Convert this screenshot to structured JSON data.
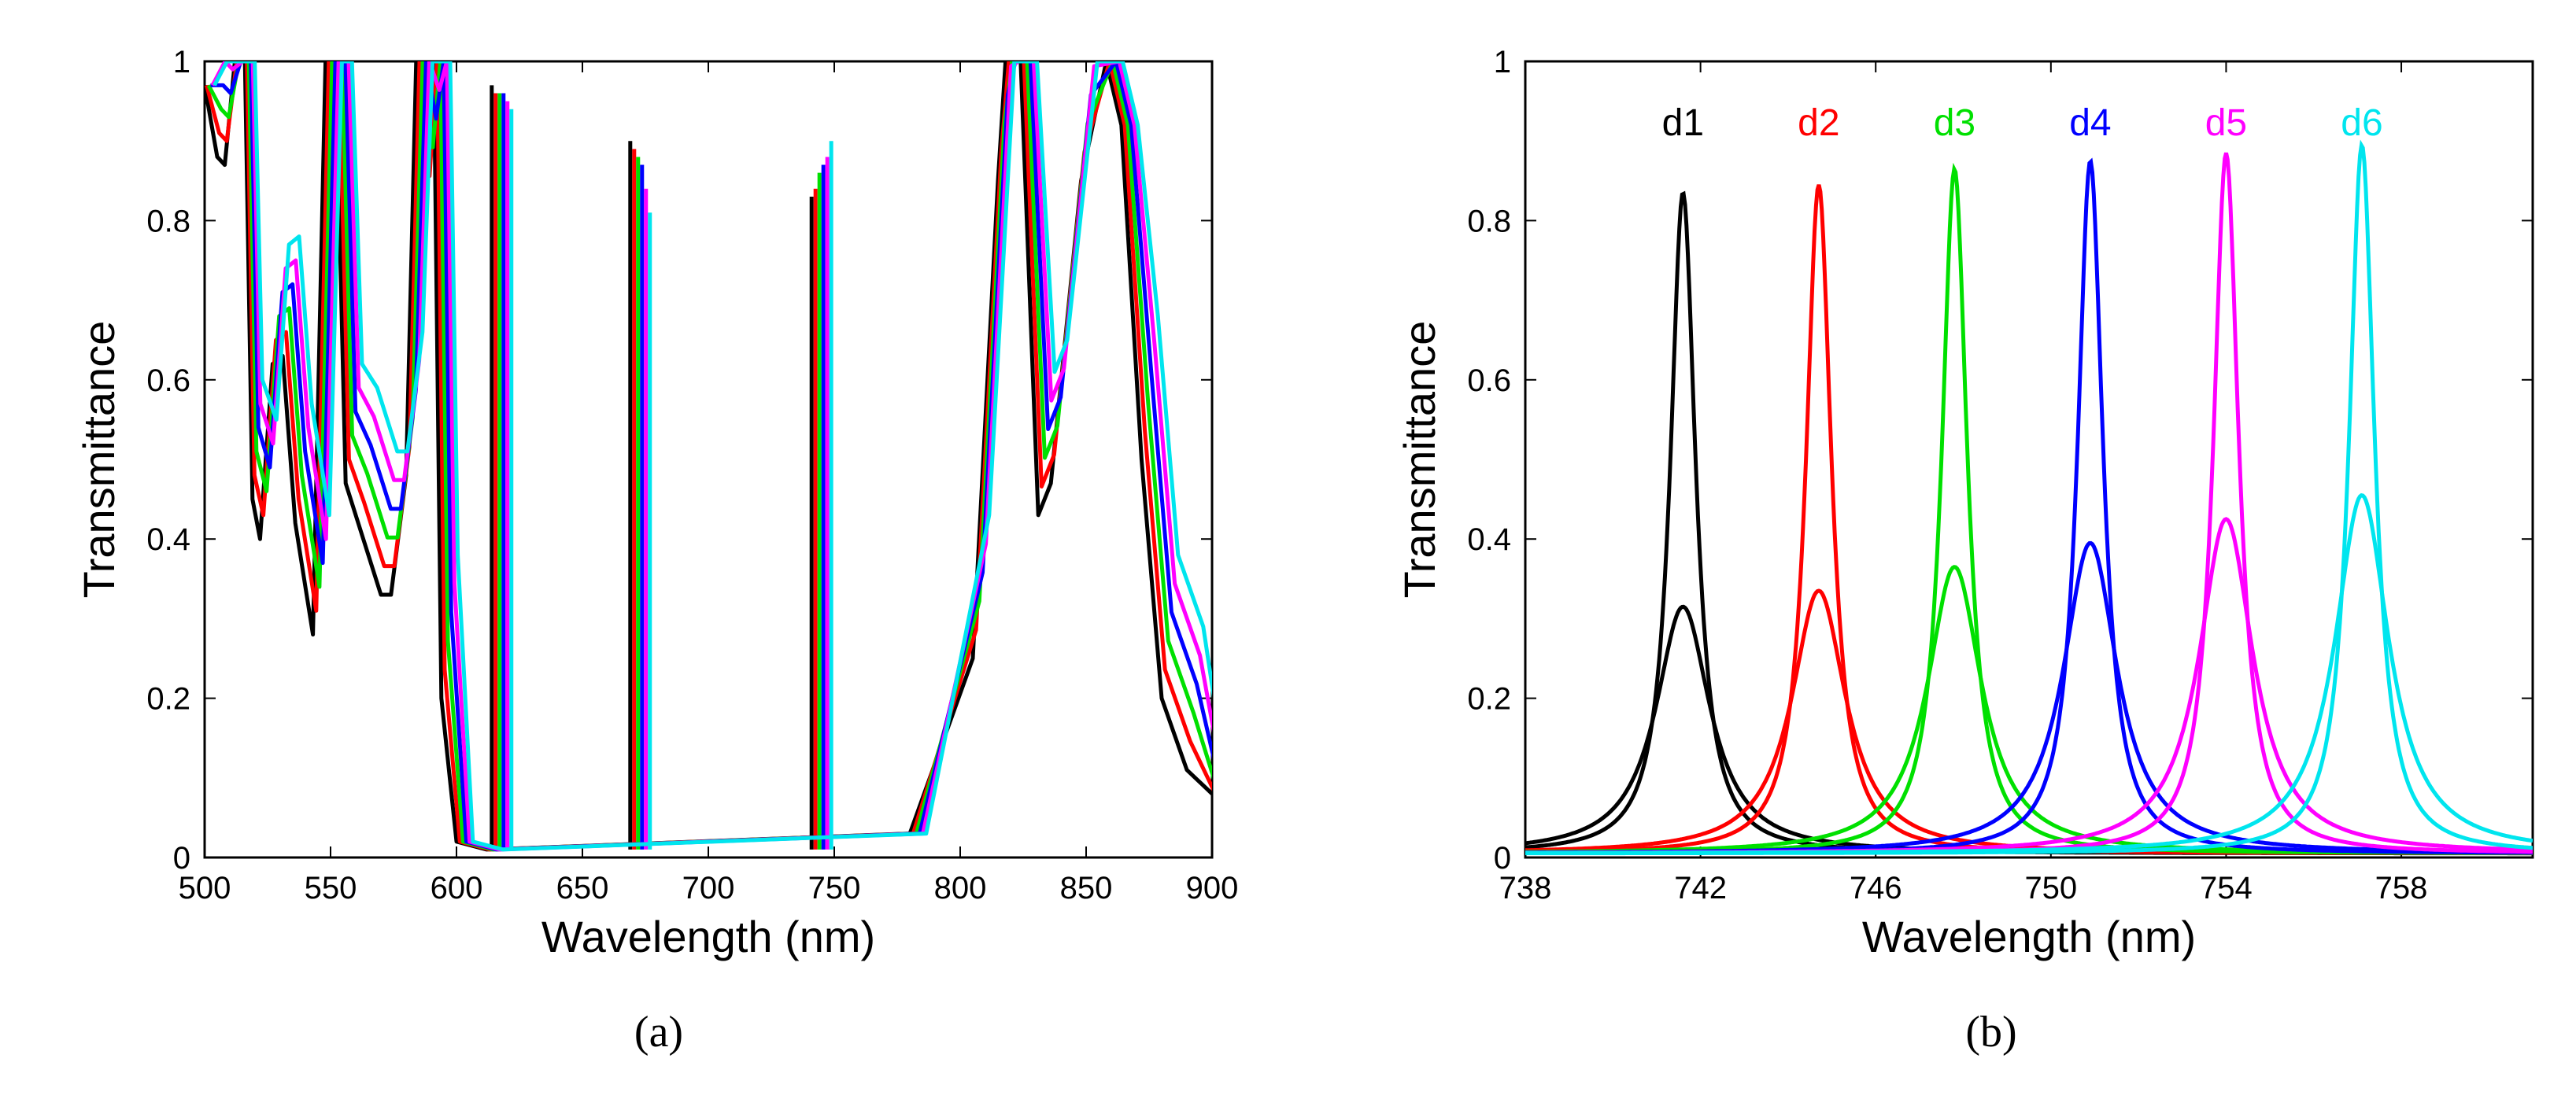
{
  "chart_data": [
    {
      "type": "line",
      "panel_label": "(a)",
      "xlabel": "Wavelength (nm)",
      "ylabel": "Transmittance",
      "xlim": [
        500,
        900
      ],
      "ylim": [
        0,
        1
      ],
      "xticks": [
        "500",
        "550",
        "600",
        "650",
        "700",
        "750",
        "800",
        "850",
        "900"
      ],
      "yticks": [
        "0",
        "0.2",
        "0.4",
        "0.6",
        "0.8",
        "1"
      ],
      "grid": false,
      "series": [
        {
          "color": "#000000",
          "shift": 0.0
        },
        {
          "color": "#ff0000",
          "shift": 1.3
        },
        {
          "color": "#00e000",
          "shift": 2.6
        },
        {
          "color": "#0000ff",
          "shift": 3.9
        },
        {
          "color": "#ff00ff",
          "shift": 5.2
        },
        {
          "color": "#00e5ee",
          "shift": 6.5
        }
      ],
      "points_black": [
        [
          500,
          0.97
        ],
        [
          505,
          0.88
        ],
        [
          508,
          0.87
        ],
        [
          512,
          1.0
        ],
        [
          516,
          1.0
        ],
        [
          519,
          0.45
        ],
        [
          522,
          0.4
        ],
        [
          527,
          0.62
        ],
        [
          531,
          0.63
        ],
        [
          536,
          0.42
        ],
        [
          543,
          0.28
        ],
        [
          548,
          1.0
        ],
        [
          552,
          1.0
        ],
        [
          556,
          0.47
        ],
        [
          562,
          0.41
        ],
        [
          570,
          0.33
        ],
        [
          574,
          0.33
        ],
        [
          580,
          0.48
        ],
        [
          584,
          1.0
        ],
        [
          588,
          0.82
        ],
        [
          591,
          1.0
        ],
        [
          594,
          0.2
        ],
        [
          600,
          0.02
        ],
        [
          612,
          0.01
        ],
        [
          614,
          0.97
        ],
        [
          615,
          0.01
        ],
        [
          668,
          0.01
        ],
        [
          669,
          0.9
        ],
        [
          670,
          0.01
        ],
        [
          740,
          0.01
        ],
        [
          741,
          0.83
        ],
        [
          742,
          0.01
        ],
        [
          780,
          0.03
        ],
        [
          805,
          0.25
        ],
        [
          815,
          0.85
        ],
        [
          818,
          1.0
        ],
        [
          824,
          1.0
        ],
        [
          831,
          0.43
        ],
        [
          836,
          0.47
        ],
        [
          848,
          0.85
        ],
        [
          858,
          1.0
        ],
        [
          864,
          0.92
        ],
        [
          872,
          0.5
        ],
        [
          880,
          0.2
        ],
        [
          890,
          0.11
        ],
        [
          900,
          0.08
        ]
      ],
      "peak_groups_a": [
        {
          "x": 614,
          "top": [
            0.97,
            0.96,
            0.96,
            0.96,
            0.95,
            0.94
          ]
        },
        {
          "x": 669,
          "top": [
            0.9,
            0.89,
            0.88,
            0.87,
            0.84,
            0.81
          ]
        },
        {
          "x": 741,
          "top": [
            0.83,
            0.84,
            0.86,
            0.87,
            0.88,
            0.9
          ]
        }
      ]
    },
    {
      "type": "line",
      "panel_label": "(b)",
      "xlabel": "Wavelength (nm)",
      "ylabel": "Transmittance",
      "xlim": [
        738,
        761
      ],
      "ylim": [
        0,
        1
      ],
      "xticks": [
        "738",
        "742",
        "746",
        "750",
        "754",
        "758"
      ],
      "yticks": [
        "0",
        "0.2",
        "0.4",
        "0.6",
        "0.8",
        "1"
      ],
      "grid": false,
      "series": [
        {
          "name": "d1",
          "color": "#000000",
          "center": 741.6,
          "peak": 0.83,
          "broad_peak": 0.31
        },
        {
          "name": "d2",
          "color": "#ff0000",
          "center": 744.7,
          "peak": 0.84,
          "broad_peak": 0.33
        },
        {
          "name": "d3",
          "color": "#00e000",
          "center": 747.8,
          "peak": 0.86,
          "broad_peak": 0.36
        },
        {
          "name": "d4",
          "color": "#0000ff",
          "center": 750.9,
          "peak": 0.87,
          "broad_peak": 0.39
        },
        {
          "name": "d5",
          "color": "#ff00ff",
          "center": 754.0,
          "peak": 0.88,
          "broad_peak": 0.42
        },
        {
          "name": "d6",
          "color": "#00e5ee",
          "center": 757.1,
          "peak": 0.89,
          "broad_peak": 0.45
        }
      ]
    }
  ]
}
